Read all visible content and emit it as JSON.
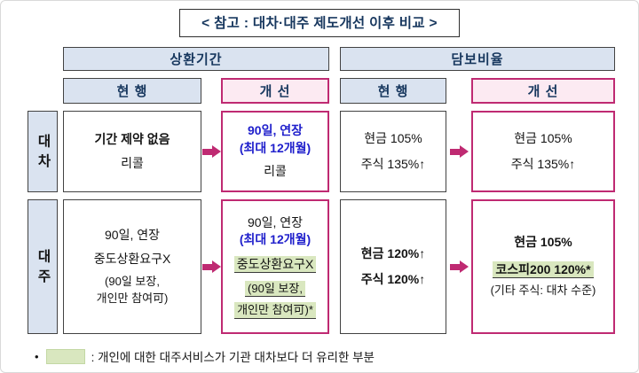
{
  "title": "< 참고 : 대차·대주 제도개선 이후 비교 >",
  "headers": {
    "repayment_group": "상환기간",
    "collateral_group": "담보비율",
    "current": "현 행",
    "improved": "개 선"
  },
  "row_labels": {
    "daecha": "대차",
    "daeju": "대주"
  },
  "cells": {
    "daecha_repay_current": {
      "l1": "기간 제약 없음",
      "l2": "리콜"
    },
    "daecha_repay_improved": {
      "l1": "90일, 연장",
      "l2": "(최대 12개월)",
      "l3": "리콜"
    },
    "daecha_coll_current": {
      "l1": "현금 105%",
      "l2": "주식 135%↑"
    },
    "daecha_coll_improved": {
      "l1": "현금 105%",
      "l2": "주식 135%↑"
    },
    "daeju_repay_current": {
      "l1": "90일, 연장",
      "l2": "중도상환요구X",
      "l3": "(90일 보장,",
      "l4": "개인만 참여可)"
    },
    "daeju_repay_improved": {
      "l1": "90일, 연장",
      "l2": "(최대 12개월)",
      "l3": "중도상환요구X",
      "l4": "(90일 보장,",
      "l5": "개인만 참여可)*"
    },
    "daeju_coll_current": {
      "l1": "현금 120%↑",
      "l2": "주식 120%↑"
    },
    "daeju_coll_improved": {
      "l1": "현금 105%",
      "l2": "코스피200 120%*",
      "l3": "(기타 주식: 대차 수준)"
    }
  },
  "footnote": {
    "bullet": "•",
    "text": ": 개인에 대한 대주서비스가 기관 대차보다 더 유리한 부분"
  },
  "colors": {
    "accent_magenta": "#bf2a72",
    "header_blue_bg": "#dae3f0",
    "improved_header_pink_bg": "#fceaf2",
    "highlight_green": "#d9e7bf",
    "header_text_navy": "#17375e",
    "emphasis_blue": "#2020cc"
  }
}
